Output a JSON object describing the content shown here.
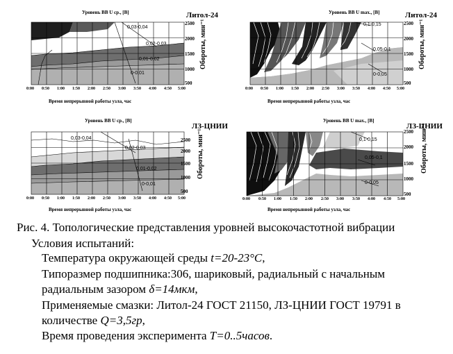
{
  "panels": [
    {
      "lubricant": "Литол-24",
      "top_label": "Уровень ВВ U ср., [В]",
      "ylabel": "Обороты, мин⁻¹",
      "xlabel": "Время непрерывной работы узла, час",
      "yticks": [
        "2500",
        "2000",
        "1500",
        "1000",
        "500"
      ],
      "xticks": [
        "0:00",
        "0:50",
        "1:00",
        "1:50",
        "2:00",
        "2:50",
        "3:00",
        "3:50",
        "4:00",
        "4:50",
        "5:00"
      ],
      "levels": [
        "0,03-0,04",
        "0,02-0,03",
        "0,01-0,02",
        "0-0,01"
      ]
    },
    {
      "lubricant": "Литол-24",
      "top_label": "Уровень ВВ U max., [В]",
      "ylabel": "Обороты, мин⁻¹",
      "xlabel": "Время непрерывной работы узла, час",
      "yticks": [
        "2500",
        "2000",
        "1500",
        "1000",
        "500"
      ],
      "xticks": [
        "0:00",
        "0:50",
        "1:00",
        "1:50",
        "2:00",
        "2:50",
        "3:00",
        "3:50",
        "4:00",
        "4:50",
        "5:00"
      ],
      "levels": [
        "0,1-0,15",
        "0,05-0,1",
        "0-0,05"
      ]
    },
    {
      "lubricant": "ЛЗ-ЦНИИ",
      "top_label": "Уровень ВВ U ср., [В]",
      "ylabel": "Обороты, мин⁻¹",
      "xlabel": "Время непрерывной работы узла, час",
      "yticks": [
        "2500",
        "2000",
        "1500",
        "1000",
        "500"
      ],
      "xticks": [
        "0:00",
        "0:50",
        "1:00",
        "1:50",
        "2:00",
        "2:50",
        "3:00",
        "3:50",
        "4:00",
        "4:50",
        "5:00"
      ],
      "levels": [
        "0,03-0,04",
        "0,02-0,03",
        "0,01-0,02",
        "0-0,01"
      ]
    },
    {
      "lubricant": "ЛЗ-ЦНИИ",
      "top_label": "Уровень ВВ U max., [В]",
      "ylabel": "Обороты, мин⁻¹",
      "xlabel": "Время непрерывной работы узла, час",
      "yticks": [
        "2500",
        "2000",
        "1500",
        "1000",
        "500"
      ],
      "xticks": [
        "0:00",
        "0:50",
        "1:00",
        "1:50",
        "2:00",
        "2:50",
        "3:00",
        "3:50",
        "4:00",
        "4:50",
        "5:00"
      ],
      "levels": [
        "0,1-0,15",
        "0,05-0,1",
        "0-0,05"
      ]
    }
  ],
  "caption": {
    "title": "Рис. 4. Топологические представления уровней высокочастотной вибрации",
    "conditions": "Условия испытаний:",
    "line1_text": "Температура окружающей среды ",
    "line1_val": "t=20-23°C",
    "line1_end": ",",
    "line2": "Типоразмер подшипника:306, шариковый, радиальный с начальным",
    "line3_text": "радиальным зазором ",
    "line3_val": "δ=14мкм",
    "line3_end": ",",
    "line4": "Применяемые смазки: Литол-24 ГОСТ 21150, ЛЗ-ЦНИИ ГОСТ 19791 в",
    "line5_text": "количестве ",
    "line5_val": "Q=3,5гр",
    "line5_end": ",",
    "line6_text": "Время проведения эксперимента ",
    "line6_val": "T=0..5часов",
    "line6_end": "."
  }
}
